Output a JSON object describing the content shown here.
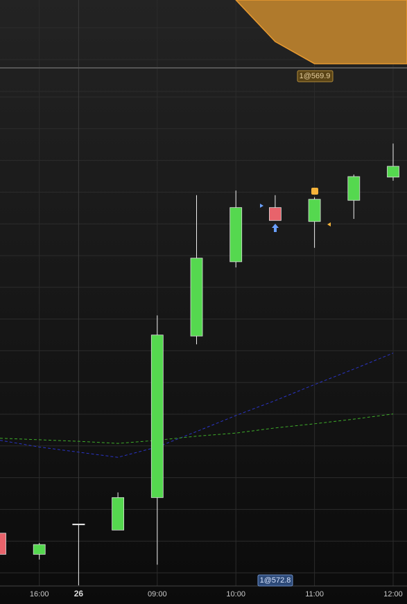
{
  "chart_data": [
    {
      "type": "candlestick",
      "categories": [
        null,
        "16:00",
        "26",
        null,
        "09:00",
        null,
        "10:00",
        null,
        "11:00",
        null,
        "12:00"
      ],
      "open": [
        10.1,
        6.0,
        11.8,
        10.7,
        17.0,
        48.3,
        62.7,
        73.2,
        70.5,
        74.6,
        79.1
      ],
      "high": [
        10.1,
        8.2,
        11.8,
        18.0,
        52.3,
        75.6,
        76.5,
        75.6,
        75.2,
        79.6,
        85.6
      ],
      "low": [
        6.0,
        5.0,
        0.0,
        10.7,
        4.0,
        46.7,
        61.6,
        70.7,
        65.4,
        71.0,
        78.4
      ],
      "close": [
        6.0,
        7.9,
        11.8,
        17.0,
        48.5,
        63.4,
        73.2,
        70.7,
        74.8,
        79.2,
        81.2
      ],
      "up_color": "#55d84f",
      "down_color": "#e8636b",
      "lines": [
        {
          "color": "#2b35c8",
          "values": [
            28.1,
            26.8,
            25.8,
            24.8,
            26.8,
            29.8,
            32.9,
            35.8,
            38.9,
            41.9,
            45.0
          ]
        },
        {
          "color": "#3fae2a",
          "values": [
            28.5,
            28.2,
            27.9,
            27.5,
            28.1,
            28.9,
            29.5,
            30.5,
            31.3,
            32.2,
            33.2
          ]
        }
      ],
      "annotations": [
        "1@569.9",
        "1@572.8"
      ],
      "ylim": [
        0,
        100
      ]
    },
    {
      "type": "area",
      "color": "#b07a2c",
      "values": [
        null,
        null,
        null,
        null,
        null,
        null,
        100,
        38.1,
        5.2,
        5.2,
        5.2
      ],
      "ylim": [
        0,
        100
      ]
    }
  ]
}
